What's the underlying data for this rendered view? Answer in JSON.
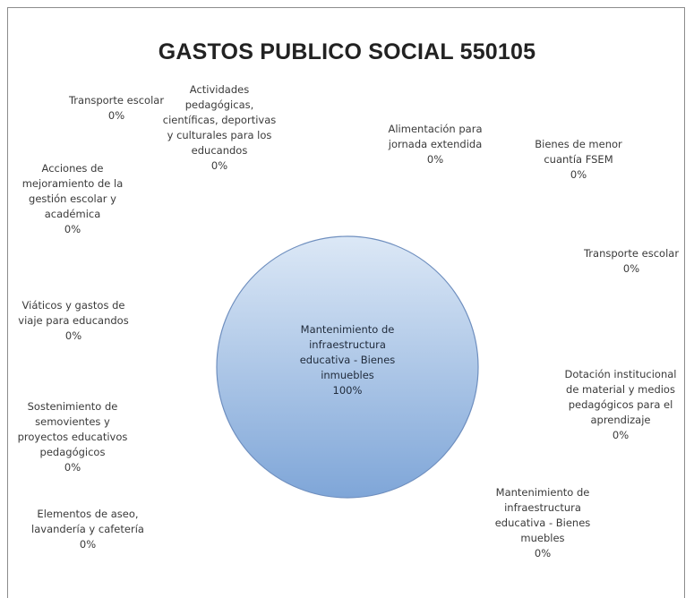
{
  "chart_data": {
    "type": "pie",
    "title": "GASTOS PUBLICO SOCIAL 550105",
    "slices": [
      {
        "label": "Transporte escolar",
        "value_label": "0%",
        "value": 0
      },
      {
        "label": "Actividades pedagógicas, científicas, deportivas y culturales para los educandos",
        "value_label": "0%",
        "value": 0
      },
      {
        "label": "Alimentación para jornada extendida",
        "value_label": "0%",
        "value": 0
      },
      {
        "label": "Bienes de menor cuantía FSEM",
        "value_label": "0%",
        "value": 0
      },
      {
        "label": "Acciones de mejoramiento de la gestión escolar y académica",
        "value_label": "0%",
        "value": 0
      },
      {
        "label": "Transporte escolar",
        "value_label": "0%",
        "value": 0
      },
      {
        "label": "Viáticos y gastos de viaje para educandos",
        "value_label": "0%",
        "value": 0
      },
      {
        "label": "Dotación institucional de material y medios pedagógicos para el aprendizaje",
        "value_label": "0%",
        "value": 0
      },
      {
        "label": "Sostenimiento de semovientes y proyectos educativos pedagógicos",
        "value_label": "0%",
        "value": 0
      },
      {
        "label": "Elementos de aseo, lavandería y cafetería",
        "value_label": "0%",
        "value": 0
      },
      {
        "label": "Mantenimiento de infraestructura educativa - Bienes muebles",
        "value_label": "0%",
        "value": 0
      },
      {
        "label": "Mantenimiento de infraestructura educativa - Bienes inmuebles",
        "value_label": "100%",
        "value": 100
      }
    ],
    "colors": {
      "slice_light": "#dce8f6",
      "slice_dark": "#7fa6d8",
      "edge": "#6f8fbf"
    }
  },
  "labels": {
    "t_transporte_1": "Transporte escolar\n0%",
    "t_actividades": "Actividades\npedagógicas,\ncientíficas, deportivas\ny culturales para los\neducandos\n0%",
    "t_alimentacion": "Alimentación para\njornada extendida\n0%",
    "t_bienes_menor": "Bienes de menor\ncuantía FSEM\n0%",
    "t_acciones": "Acciones de\nmejoramiento de la\ngestión escolar y\nacadémica\n0%",
    "t_transporte_2": "Transporte escolar\n0%",
    "t_viaticos": "Viáticos y gastos de\nviaje para educandos\n0%",
    "t_dotacion": "Dotación institucional\nde material y medios\npedagógicos para el\naprendizaje\n0%",
    "t_sostenimiento": "Sostenimiento de\nsemovientes y\nproyectos educativos\npedagógicos\n0%",
    "t_elementos": "Elementos de aseo,\nlavandería y cafetería\n0%",
    "t_muebles": "Mantenimiento de\ninfraestructura\neducativa - Bienes\nmuebles\n0%",
    "t_inmuebles": "Mantenimiento de\ninfraestructura\neducativa - Bienes\ninmuebles\n100%"
  }
}
